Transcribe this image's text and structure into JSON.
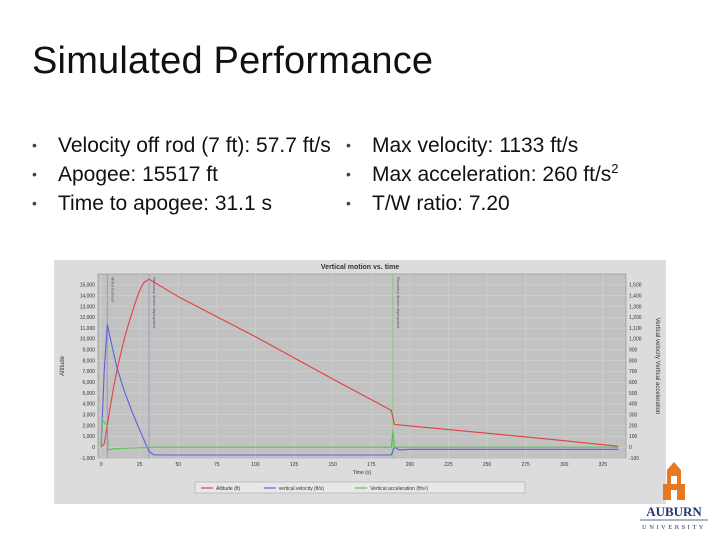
{
  "slide": {
    "title": "Simulated Performance",
    "bullet_glyph": "•",
    "left_bullets": [
      "Velocity off rod (7 ft): 57.7 ft/s",
      "Apogee: 15517 ft",
      "Time to apogee: 31.1 s"
    ],
    "right_bullets": {
      "max_velocity": "Max velocity: 1133 ft/s",
      "max_accel_text": "Max acceleration: 260 ft/s",
      "max_accel_sup": "2",
      "tw_ratio": "T/W ratio: 7.20"
    }
  },
  "logo": {
    "name": "AUBURN",
    "sub": "UNIVERSITY",
    "color": "#1d3a6e",
    "accent": "#e87722"
  },
  "chart_data": {
    "type": "line",
    "title": "Vertical motion vs. time",
    "x_ticks": [
      "0",
      "25",
      "50",
      "75",
      "100",
      "125",
      "150",
      "175",
      "200",
      "225",
      "250",
      "275",
      "300",
      "325"
    ],
    "x_range": [
      -2,
      340
    ],
    "xlabel": "Time (s)",
    "y_left_label": "Altitude",
    "y_left_ticks": [
      "-1,000",
      "0",
      "1,000",
      "2,000",
      "3,000",
      "4,000",
      "5,000",
      "6,000",
      "7,000",
      "8,000",
      "9,000",
      "10,000",
      "11,000",
      "12,000",
      "13,000",
      "14,000",
      "15,000"
    ],
    "y_left_range": [
      -1000,
      16000
    ],
    "y_right_label": "Vertical velocity  Vertical acceleration",
    "y_right_ticks": [
      "-100",
      "0",
      "100",
      "200",
      "300",
      "400",
      "500",
      "600",
      "700",
      "800",
      "900",
      "1,000",
      "1,100",
      "1,200",
      "1,300",
      "1,400",
      "1,500"
    ],
    "y_right_range": [
      -100,
      1600
    ],
    "events": [
      {
        "x": 4,
        "label": "Motor burnout",
        "color": "#a58ed6"
      },
      {
        "x": 31.1,
        "label": "Recovery device deployment",
        "color": "#9b9bd0"
      },
      {
        "x": 189,
        "label": "Recovery device deployment",
        "color": "#7ccf7c"
      }
    ],
    "series": [
      {
        "name": "Altitude (ft)",
        "color": "#e34040",
        "axis": "left",
        "points": [
          [
            0,
            0
          ],
          [
            2,
            300
          ],
          [
            4,
            2000
          ],
          [
            6,
            3800
          ],
          [
            8,
            5400
          ],
          [
            10,
            6900
          ],
          [
            12,
            8200
          ],
          [
            14,
            9400
          ],
          [
            16,
            10500
          ],
          [
            18,
            11500
          ],
          [
            20,
            12400
          ],
          [
            22,
            13300
          ],
          [
            24,
            14100
          ],
          [
            26,
            14800
          ],
          [
            28,
            15250
          ],
          [
            31.1,
            15517
          ],
          [
            50,
            13900
          ],
          [
            100,
            10200
          ],
          [
            150,
            6300
          ],
          [
            188,
            3400
          ],
          [
            190,
            2100
          ],
          [
            220,
            1700
          ],
          [
            260,
            1150
          ],
          [
            300,
            600
          ],
          [
            335,
            80
          ]
        ]
      },
      {
        "name": "vertical velocity (ft/s)",
        "color": "#5b62d8",
        "axis": "right",
        "points": [
          [
            0,
            0
          ],
          [
            2,
            700
          ],
          [
            4,
            1133
          ],
          [
            6,
            1000
          ],
          [
            10,
            750
          ],
          [
            15,
            520
          ],
          [
            20,
            330
          ],
          [
            25,
            160
          ],
          [
            28,
            60
          ],
          [
            31.1,
            -40
          ],
          [
            34,
            -70
          ],
          [
            40,
            -72
          ],
          [
            100,
            -72
          ],
          [
            150,
            -72
          ],
          [
            188,
            -72
          ],
          [
            190,
            0
          ],
          [
            193,
            -25
          ],
          [
            200,
            -20
          ],
          [
            250,
            -20
          ],
          [
            300,
            -20
          ],
          [
            335,
            -20
          ]
        ]
      },
      {
        "name": "Vertical acceleration (ft/s²)",
        "color": "#55c455",
        "axis": "right",
        "points": [
          [
            0,
            0
          ],
          [
            0.5,
            260
          ],
          [
            1.5,
            240
          ],
          [
            3,
            215
          ],
          [
            4,
            200
          ],
          [
            4.5,
            -25
          ],
          [
            8,
            -15
          ],
          [
            20,
            -8
          ],
          [
            31.1,
            -3
          ],
          [
            32,
            0
          ],
          [
            188,
            0
          ],
          [
            189,
            150
          ],
          [
            190,
            0
          ],
          [
            335,
            0
          ]
        ]
      }
    ],
    "grid": true,
    "legend_position": "bottom"
  }
}
